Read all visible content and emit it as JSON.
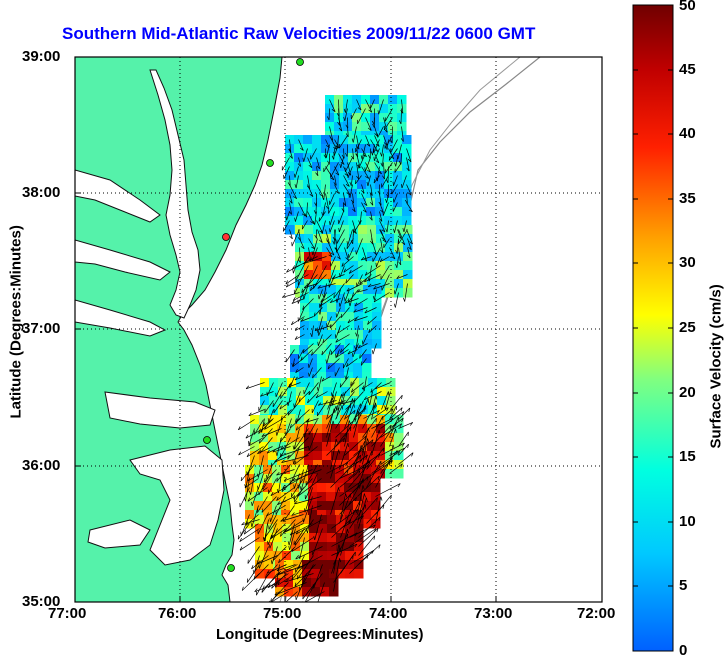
{
  "title": "Southern Mid-Atlantic Raw Velocities 2009/11/22 0600 GMT",
  "map": {
    "xlabel": "Longitude (Degrees:Minutes)",
    "ylabel": "Latitude (Degrees:Minutes)",
    "x_ticks": [
      "77:00",
      "76:00",
      "75:00",
      "74:00",
      "73:00",
      "72:00"
    ],
    "y_ticks": [
      "39:00",
      "38:00",
      "37:00",
      "36:00",
      "35:00"
    ],
    "land_color": "#55f2aa",
    "grid": "dotted"
  },
  "colorbar": {
    "label": "Surface Velocity (cm/s)",
    "ticks": [
      "50",
      "45",
      "40",
      "35",
      "30",
      "25",
      "20",
      "15",
      "10",
      "5",
      "0"
    ],
    "min": 0,
    "max": 50
  }
}
